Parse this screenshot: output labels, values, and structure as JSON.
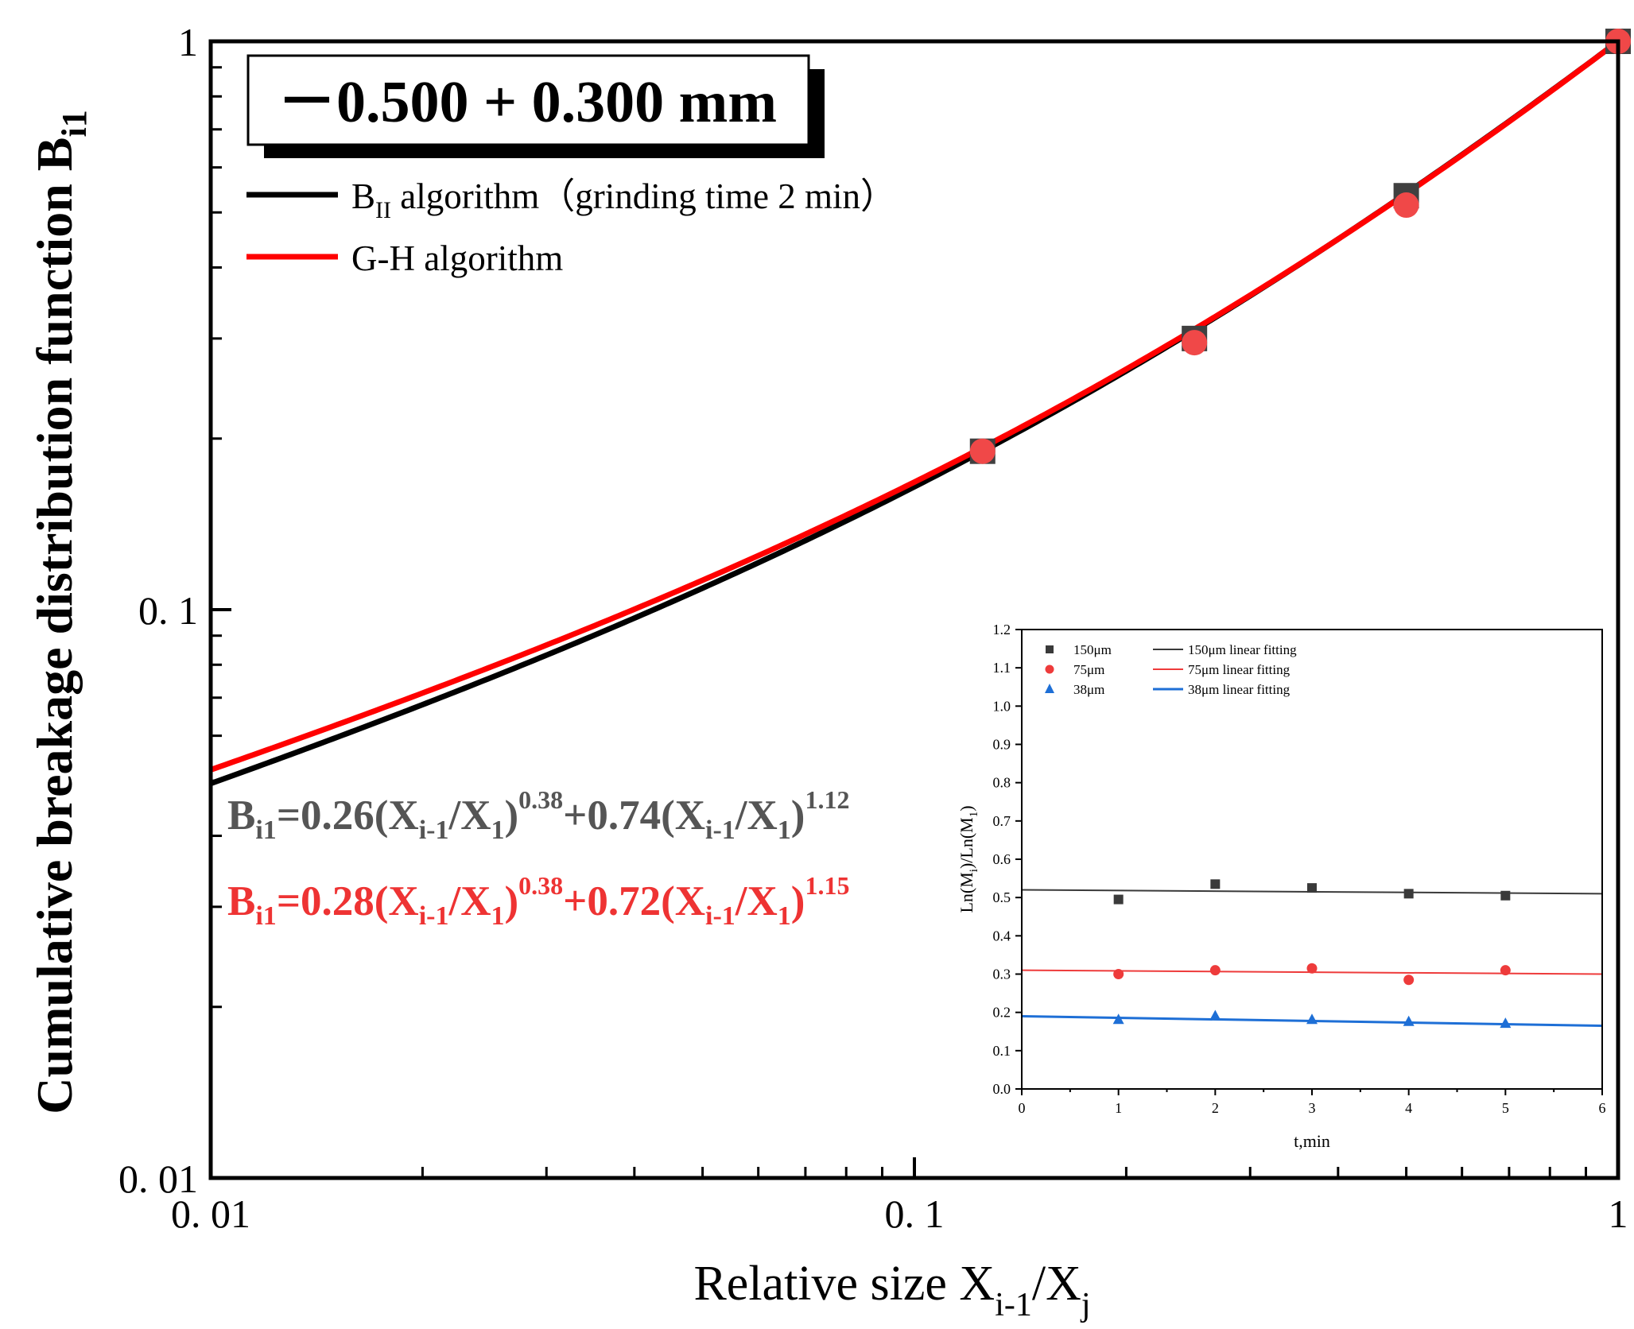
{
  "colors": {
    "axis": "#000000",
    "bii": "#000000",
    "gh": "#ff0000",
    "square_marker": "#404040",
    "circle_marker": "#f04848",
    "eq_gray": "#555555",
    "eq_red": "#ee3333",
    "inset_150": "#3a3a3a",
    "inset_75": "#ee3b3b",
    "inset_38": "#1e6fd6"
  },
  "size_label": "－0.500 + 0.300 mm",
  "legend": {
    "bii_label": "BII algorithm（grinding time 2 min）",
    "bii_B": "B",
    "bii_sub": "II",
    "bii_rest": " algorithm（grinding time 2 min）",
    "gh_label": "G-H algorithm"
  },
  "equations": {
    "bii": {
      "lhs": "B",
      "lhs_sub": "i1",
      "c1": "=0.26(X",
      "s1": "i-1",
      "m1": "/X",
      "s2": "1",
      "p1": ")",
      "e1": "0.38",
      "c2": "+0.74(X",
      "s3": "i-1",
      "m2": "/X",
      "s4": "1",
      "p2": ")",
      "e2": "1.12"
    },
    "gh": {
      "lhs": "B",
      "lhs_sub": "i1",
      "c1": "=0.28(X",
      "s1": "i-1",
      "m1": "/X",
      "s2": "1",
      "p1": ")",
      "e1": "0.38",
      "c2": "+0.72(X",
      "s3": "i-1",
      "m2": "/X",
      "s4": "1",
      "p2": ")",
      "e2": "1.15"
    }
  },
  "chart_data": [
    {
      "type": "line",
      "title": "",
      "xlabel": "Relative size Xi-1/Xj",
      "ylabel": "Cumulative breakage distribution function Bi1",
      "xscale": "log",
      "yscale": "log",
      "xlim": [
        0.01,
        1
      ],
      "ylim": [
        0.01,
        1
      ],
      "x_ticks": [
        0.01,
        0.1,
        1
      ],
      "x_tick_labels": [
        "0. 01",
        "0. 1",
        "1"
      ],
      "y_ticks": [
        0.01,
        0.1,
        1
      ],
      "y_tick_labels": [
        "0. 01",
        "0. 1",
        "1"
      ],
      "series": [
        {
          "name": "BII algorithm (grinding time 2 min)",
          "kind": "line",
          "model": {
            "a": 0.26,
            "b": 0.38,
            "c": 0.74,
            "d": 1.12
          }
        },
        {
          "name": "G-H algorithm",
          "kind": "line",
          "model": {
            "a": 0.28,
            "b": 0.38,
            "c": 0.72,
            "d": 1.15
          }
        },
        {
          "name": "BII data",
          "kind": "square",
          "x": [
            0.125,
            0.25,
            0.5,
            1.0
          ],
          "y": [
            0.19,
            0.3,
            0.535,
            1.0
          ]
        },
        {
          "name": "G-H data",
          "kind": "circle",
          "x": [
            0.125,
            0.25,
            0.5,
            1.0
          ],
          "y": [
            0.19,
            0.295,
            0.515,
            1.0
          ]
        }
      ]
    },
    {
      "type": "scatter",
      "title": "",
      "xlabel": "t,min",
      "ylabel": "Ln(Mi)/Ln(M1)",
      "ylabel_a": "Ln(M",
      "ylabel_sub1": "i",
      "ylabel_b": ")/Ln(M",
      "ylabel_sub2": "1",
      "ylabel_c": ")",
      "xlim": [
        0,
        6
      ],
      "ylim": [
        0,
        1.2
      ],
      "x_ticks": [
        0,
        1,
        2,
        3,
        4,
        5,
        6
      ],
      "x_tick_labels": [
        "0",
        "1",
        "2",
        "3",
        "4",
        "5",
        "6"
      ],
      "y_ticks": [
        0,
        0.1,
        0.2,
        0.3,
        0.4,
        0.5,
        0.6,
        0.7,
        0.8,
        0.9,
        1.0,
        1.1,
        1.2
      ],
      "y_tick_labels": [
        "0.0",
        "0.1",
        "0.2",
        "0.3",
        "0.4",
        "0.5",
        "0.6",
        "0.7",
        "0.8",
        "0.9",
        "1.0",
        "1.1",
        "1.2"
      ],
      "legend": [
        "150μm",
        "75μm",
        "38μm",
        "150μm linear fitting",
        "75μm linear fitting",
        "38μm linear fitting"
      ],
      "series": [
        {
          "name": "150μm",
          "marker": "square",
          "x": [
            1,
            2,
            3,
            4,
            5
          ],
          "y": [
            0.495,
            0.535,
            0.525,
            0.51,
            0.505
          ],
          "fit": [
            0.52,
            0.51
          ]
        },
        {
          "name": "75μm",
          "marker": "circle",
          "x": [
            1,
            2,
            3,
            4,
            5
          ],
          "y": [
            0.3,
            0.31,
            0.315,
            0.285,
            0.31
          ],
          "fit": [
            0.31,
            0.3
          ]
        },
        {
          "name": "38μm",
          "marker": "triangle",
          "x": [
            1,
            2,
            3,
            4,
            5
          ],
          "y": [
            0.18,
            0.19,
            0.18,
            0.175,
            0.17
          ],
          "fit": [
            0.19,
            0.165
          ]
        }
      ]
    }
  ]
}
